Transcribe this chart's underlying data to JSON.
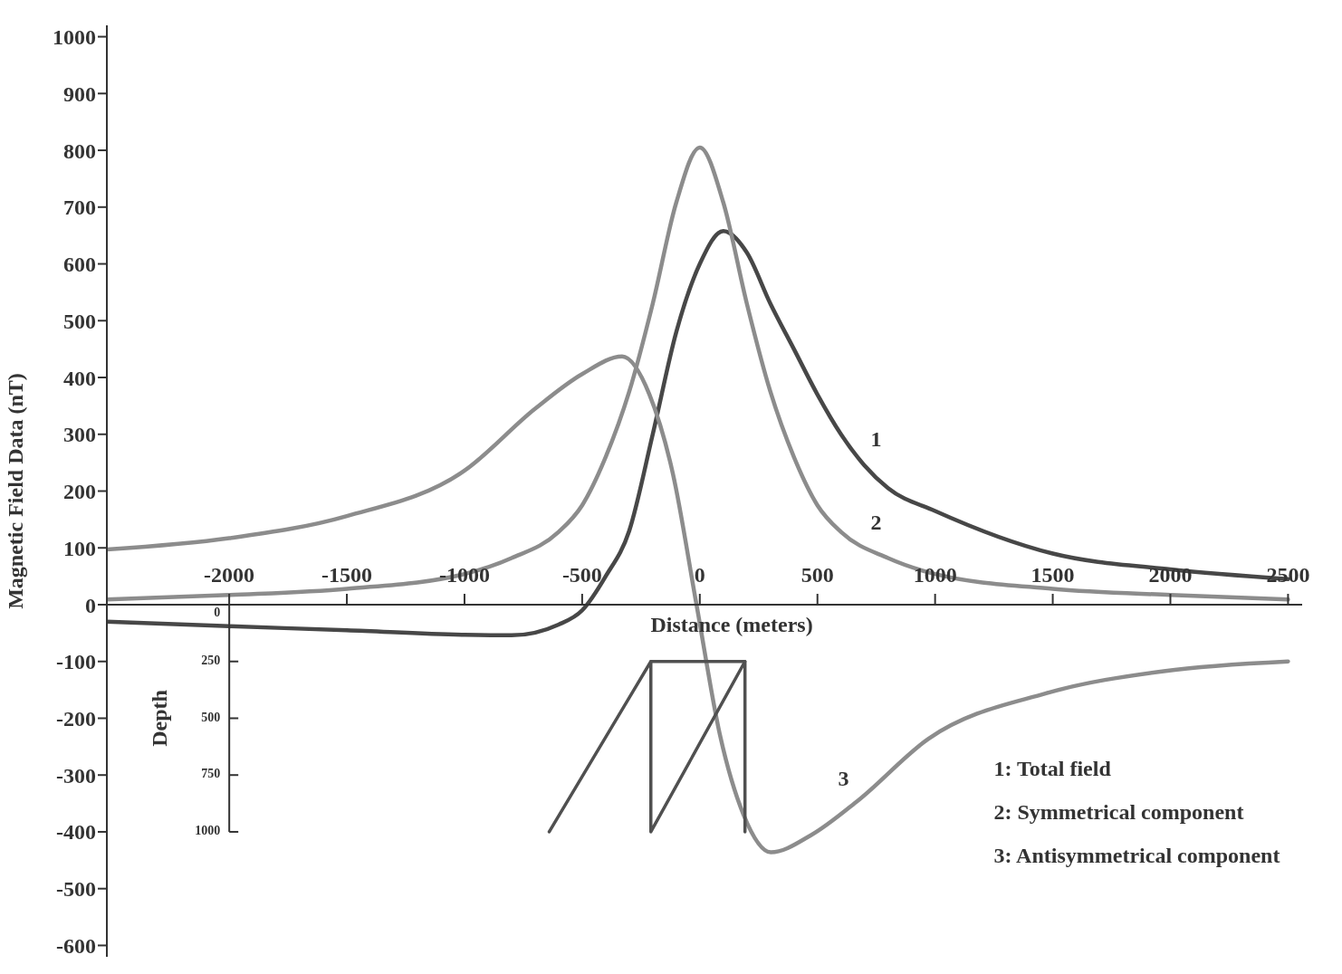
{
  "chart_data": {
    "type": "line",
    "xlabel": "Distance (meters)",
    "ylabel": "Magnetic Field Data (nT)",
    "y2label": "Depth",
    "xlim": [
      -2520,
      2560
    ],
    "xticks": [
      -2000,
      -1500,
      -1000,
      -500,
      0,
      500,
      1000,
      1500,
      2000,
      2500
    ],
    "ylim": [
      -620,
      1020
    ],
    "yticks": [
      -600,
      -500,
      -400,
      -300,
      -200,
      -100,
      0,
      100,
      200,
      300,
      400,
      500,
      600,
      700,
      800,
      900,
      1000
    ],
    "y2lim": [
      1550,
      -2550
    ],
    "y2ticks": [
      0,
      250,
      500,
      750,
      1000
    ],
    "line_style": "solid",
    "series": [
      {
        "name": "1",
        "color": "#474747",
        "x": [
          -2520,
          -2000,
          -1500,
          -1000,
          -800,
          -600,
          -500,
          -400,
          -300,
          -200,
          -100,
          0,
          100,
          200,
          300,
          400,
          500,
          600,
          700,
          800,
          1000,
          1500,
          2000,
          2500
        ],
        "values": [
          -30,
          -38,
          -45,
          -53,
          -54,
          -35,
          -10,
          50,
          130,
          300,
          480,
          600,
          658,
          620,
          530,
          450,
          370,
          300,
          245,
          205,
          165,
          90,
          62,
          45
        ]
      },
      {
        "name": "2",
        "color": "#8c8c8c",
        "x": [
          -2520,
          -2000,
          -1500,
          -1000,
          -800,
          -600,
          -500,
          -400,
          -300,
          -200,
          -100,
          0,
          100,
          200,
          300,
          400,
          500,
          600,
          800,
          1000,
          1500,
          2000,
          2500
        ],
        "values": [
          9,
          17,
          28,
          54,
          82,
          128,
          175,
          260,
          375,
          530,
          708,
          805,
          708,
          530,
          375,
          260,
          175,
          128,
          82,
          54,
          28,
          17,
          9
        ]
      },
      {
        "name": "3",
        "color": "#8c8c8c",
        "x": [
          -2520,
          -2000,
          -1500,
          -1000,
          -700,
          -500,
          -330,
          -214,
          -114,
          -14,
          86,
          186,
          302,
          472,
          672,
          972,
          1472,
          1972,
          2500
        ],
        "values": [
          97,
          117,
          156,
          236,
          345,
          406,
          437,
          370,
          230,
          0,
          -230,
          -370,
          -436,
          -406,
          -345,
          -236,
          -156,
          -117,
          -100
        ]
      },
      {
        "color": "#505050",
        "axis": "y2",
        "x": [
          -640,
          -208,
          -208,
          192,
          192
        ],
        "values": [
          1000,
          250,
          1000,
          250,
          1000
        ]
      },
      {
        "color": "#505050",
        "axis": "y2",
        "x": [
          -208,
          192
        ],
        "values": [
          250,
          250
        ]
      }
    ],
    "annotations": [
      "1: Total field",
      "2: Symmetrical component",
      "3: Antisymmetrical component"
    ]
  }
}
